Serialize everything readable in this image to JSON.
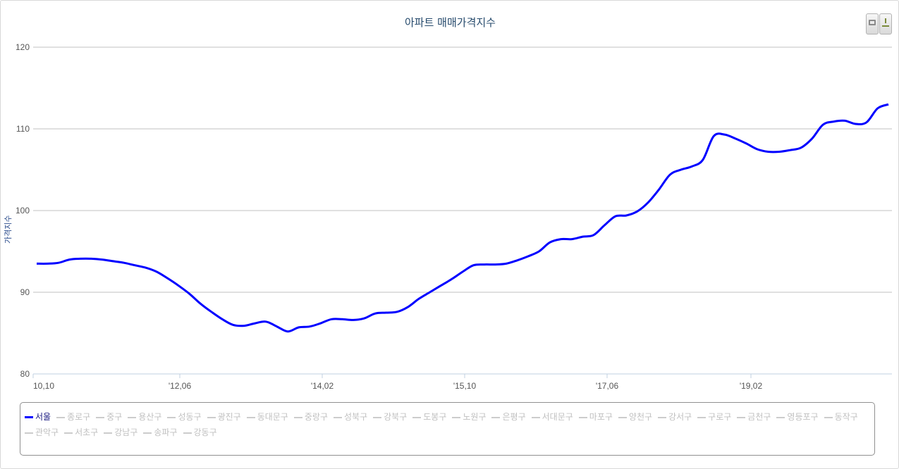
{
  "chart_data": {
    "type": "line",
    "title": "아파트 매매가격지수",
    "ylabel": "가격지수",
    "xlabel": "",
    "ylim": [
      80,
      120
    ],
    "yticks": [
      80,
      90,
      100,
      110,
      120
    ],
    "x_tick_labels": [
      "10,10",
      "'12,06",
      "'14,02",
      "'15,10",
      "'17,06",
      "'19,02"
    ],
    "grid": true,
    "legend_position": "bottom",
    "series": [
      {
        "name": "서울",
        "color": "#0000ff",
        "values": [
          93.5,
          93.5,
          93.6,
          94.0,
          94.1,
          94.1,
          94.0,
          93.8,
          93.6,
          93.3,
          93.0,
          92.5,
          91.7,
          90.8,
          89.8,
          88.6,
          87.6,
          86.7,
          86.0,
          85.9,
          86.2,
          86.4,
          85.8,
          85.2,
          85.7,
          85.8,
          86.2,
          86.7,
          86.7,
          86.6,
          86.8,
          87.4,
          87.5,
          87.6,
          88.2,
          89.2,
          90.0,
          90.8,
          91.6,
          92.5,
          93.3,
          93.4,
          93.4,
          93.5,
          93.9,
          94.4,
          95.0,
          96.1,
          96.5,
          96.5,
          96.8,
          97.0,
          98.2,
          99.3,
          99.4,
          99.9,
          101.0,
          102.6,
          104.4,
          105.0,
          105.4,
          106.2,
          109.1,
          109.3,
          108.8,
          108.2,
          107.5,
          107.2,
          107.2,
          107.4,
          107.7,
          108.8,
          110.5,
          110.9,
          111.0,
          110.6,
          110.8,
          112.5,
          113.0
        ]
      }
    ]
  },
  "legend": {
    "items": [
      "서울",
      "종로구",
      "중구",
      "용산구",
      "성동구",
      "광진구",
      "동대문구",
      "중랑구",
      "성북구",
      "강북구",
      "도봉구",
      "노원구",
      "은평구",
      "서대문구",
      "마포구",
      "양천구",
      "강서구",
      "구로구",
      "금천구",
      "영등포구",
      "동작구",
      "관악구",
      "서초구",
      "강남구",
      "송파구",
      "강동구"
    ]
  },
  "toolbar": {
    "print_icon": "printer-icon",
    "download_icon": "download-icon"
  }
}
